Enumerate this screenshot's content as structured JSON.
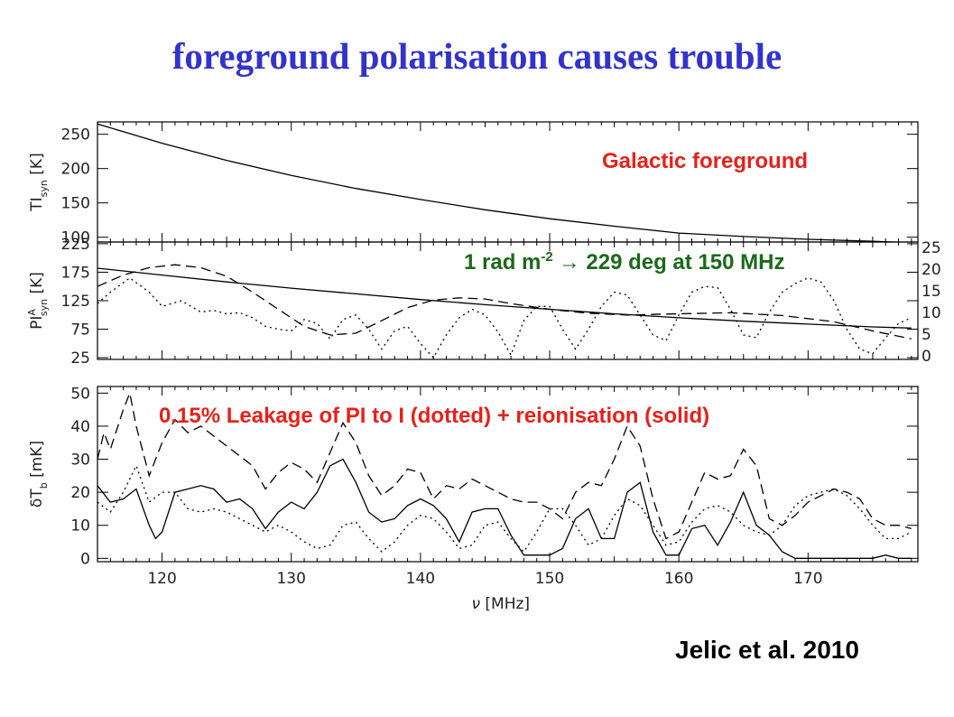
{
  "slide": {
    "title": "foreground polarisation causes trouble",
    "citation": "Jelic et al. 2010"
  },
  "annotations": {
    "galactic": "Galactic foreground",
    "rotation_prefix": "1 rad m",
    "rotation_exp": "-2",
    "rotation_arrow": "→",
    "rotation_suffix": " 229 deg at 150 MHz",
    "leakage": "0.15% Leakage of PI to I (dotted) + reionisation (solid)"
  },
  "colors": {
    "title": "#3333cc",
    "red_annotation": "#e8201a",
    "green_annotation": "#1a6a1a",
    "line": "#000000"
  },
  "chart_data": [
    {
      "type": "line",
      "panel": "top",
      "ylabel_main": "TI",
      "ylabel_sub": "syn",
      "ylabel_unit": " [K]",
      "xlim": [
        115,
        178.5
      ],
      "ylim": [
        93,
        268
      ],
      "y_ticks": [
        100,
        150,
        200,
        250
      ],
      "series": [
        {
          "style": "solid",
          "x": [
            115,
            120,
            125,
            130,
            135,
            140,
            145,
            150,
            155,
            160,
            165,
            170,
            175,
            178
          ],
          "y": [
            265,
            237,
            212,
            190,
            171,
            155,
            140,
            127,
            116,
            106,
            101,
            97,
            94,
            92
          ]
        }
      ]
    },
    {
      "type": "line",
      "panel": "middle",
      "ylabel_main": "PI",
      "ylabel_sup": "A",
      "ylabel_sub": "syn",
      "ylabel_unit": " [K]",
      "xlim": [
        115,
        178.5
      ],
      "ylim": [
        22,
        228
      ],
      "y_ticks": [
        25,
        75,
        125,
        175,
        225
      ],
      "right_ticks": [
        0,
        5,
        10,
        15,
        20,
        25
      ],
      "series": [
        {
          "style": "solid",
          "x": [
            115,
            120,
            125,
            130,
            135,
            140,
            145,
            150,
            155,
            160,
            165,
            170,
            175,
            178
          ],
          "y": [
            182,
            170,
            158,
            147,
            137,
            127,
            118,
            110,
            102,
            95,
            89,
            84,
            79,
            77
          ]
        },
        {
          "style": "dashed",
          "x": [
            115,
            117,
            119,
            121,
            123,
            125,
            127,
            129,
            131,
            133,
            135,
            137,
            139,
            141,
            143,
            145,
            147,
            150,
            153,
            156,
            160,
            164,
            168,
            172,
            175,
            178
          ],
          "y": [
            150,
            170,
            183,
            188,
            183,
            168,
            140,
            110,
            80,
            65,
            68,
            90,
            113,
            126,
            130,
            128,
            120,
            110,
            103,
            100,
            102,
            104,
            99,
            88,
            72,
            58
          ]
        },
        {
          "style": "dotted",
          "x": [
            115,
            116,
            117.5,
            119,
            120,
            121.5,
            123,
            124,
            125,
            126,
            127,
            128,
            129,
            130,
            131,
            132,
            133,
            134,
            135,
            136,
            137,
            138,
            139,
            140,
            141,
            142,
            143,
            144,
            145,
            146,
            147,
            148,
            149,
            150,
            151,
            152,
            153,
            154,
            155,
            156,
            157,
            158,
            159,
            160,
            161,
            162,
            163,
            164,
            165,
            166,
            167,
            168,
            169,
            170,
            171,
            172,
            173,
            174,
            175,
            176,
            177,
            178
          ],
          "y": [
            120,
            140,
            165,
            140,
            115,
            125,
            105,
            108,
            102,
            104,
            95,
            80,
            75,
            72,
            92,
            85,
            58,
            92,
            100,
            75,
            40,
            72,
            80,
            50,
            25,
            65,
            95,
            110,
            100,
            70,
            30,
            90,
            115,
            115,
            75,
            40,
            75,
            115,
            140,
            135,
            100,
            65,
            55,
            100,
            140,
            150,
            148,
            110,
            65,
            60,
            105,
            140,
            155,
            165,
            158,
            125,
            75,
            40,
            32,
            60,
            85,
            95
          ]
        }
      ]
    },
    {
      "type": "line",
      "panel": "bottom",
      "xlabel_main": "ν",
      "xlabel_unit": " [MHz]",
      "ylabel_main": "δT",
      "ylabel_sub": "b",
      "ylabel_unit": " [mK]",
      "xlim": [
        115,
        178.5
      ],
      "ylim": [
        -1,
        52
      ],
      "x_ticks": [
        120,
        130,
        140,
        150,
        160,
        170
      ],
      "y_ticks": [
        0,
        10,
        20,
        30,
        40,
        50
      ],
      "series": [
        {
          "style": "solid",
          "x": [
            115,
            116,
            117,
            118,
            119,
            119.5,
            120,
            121,
            122,
            123,
            124,
            125,
            126,
            127,
            128,
            129,
            130,
            131,
            132,
            133,
            134,
            135,
            136,
            137,
            138,
            139,
            140,
            141,
            142,
            143,
            144,
            145,
            146,
            147,
            148,
            149,
            150,
            151,
            152,
            153,
            154,
            155,
            156,
            157,
            158,
            159,
            160,
            161,
            162,
            163,
            164,
            165,
            166,
            167,
            168,
            169,
            170,
            171,
            172,
            173,
            174,
            175,
            176,
            177,
            178
          ],
          "y": [
            22,
            17,
            18,
            21,
            10,
            6,
            8,
            20,
            21,
            22,
            21,
            17,
            18,
            15,
            9,
            14,
            17,
            15,
            20,
            28,
            30,
            23,
            14,
            11,
            12,
            16,
            18,
            16,
            12,
            5,
            14,
            15,
            15,
            7,
            1,
            1,
            1,
            3,
            12,
            15,
            6,
            6,
            20,
            23,
            8,
            1,
            1,
            9,
            10,
            4,
            11,
            20,
            10,
            7,
            2,
            0,
            0,
            0,
            0,
            0,
            0,
            0,
            1,
            0,
            0
          ]
        },
        {
          "style": "dashed",
          "x": [
            115,
            115.5,
            116,
            117,
            117.5,
            118,
            119,
            120,
            121,
            122,
            123,
            124,
            125,
            126,
            127,
            128,
            129,
            130,
            131,
            132,
            133,
            134,
            135,
            136,
            137,
            138,
            139,
            140,
            141,
            142,
            143,
            144,
            145,
            146,
            147,
            148,
            149,
            150,
            151,
            152,
            153,
            154,
            155,
            156,
            157,
            158,
            159,
            160,
            161,
            162,
            163,
            164,
            165,
            166,
            167,
            168,
            169,
            170,
            171,
            172,
            173,
            174,
            175,
            176,
            177,
            178
          ],
          "y": [
            30,
            38,
            33,
            45,
            50,
            40,
            25,
            35,
            42,
            38,
            40,
            37,
            34,
            31,
            28,
            21,
            26,
            29,
            27,
            23,
            32,
            41,
            35,
            25,
            19,
            22,
            27,
            26,
            18,
            22,
            21,
            24,
            22,
            20,
            18,
            17,
            17,
            15,
            12,
            20,
            23,
            22,
            30,
            40,
            34,
            18,
            6,
            8,
            17,
            26,
            24,
            25,
            33,
            28,
            12,
            10,
            13,
            17,
            19,
            21,
            20,
            18,
            12,
            10,
            10,
            9
          ]
        },
        {
          "style": "dotted",
          "x": [
            115,
            116,
            117,
            118,
            119,
            120,
            121,
            122,
            123,
            124,
            125,
            126,
            127,
            128,
            129,
            130,
            131,
            132,
            133,
            134,
            135,
            136,
            137,
            138,
            139,
            140,
            141,
            142,
            143,
            144,
            145,
            146,
            147,
            148,
            149,
            150,
            151,
            152,
            153,
            154,
            155,
            156,
            157,
            158,
            159,
            160,
            161,
            162,
            163,
            164,
            165,
            166,
            167,
            168,
            169,
            170,
            171,
            172,
            173,
            174,
            175,
            176,
            177,
            178
          ],
          "y": [
            17,
            14,
            20,
            28,
            17,
            20,
            20,
            15,
            14,
            15,
            14,
            12,
            10,
            8,
            10,
            8,
            5,
            3,
            4,
            10,
            11,
            6,
            2,
            5,
            10,
            13,
            12,
            8,
            3,
            4,
            10,
            11,
            6,
            2,
            8,
            15,
            15,
            10,
            4,
            6,
            13,
            18,
            16,
            10,
            4,
            5,
            11,
            15,
            16,
            14,
            10,
            8,
            7,
            10,
            16,
            19,
            20,
            21,
            19,
            15,
            10,
            6,
            6,
            8
          ]
        }
      ]
    }
  ]
}
